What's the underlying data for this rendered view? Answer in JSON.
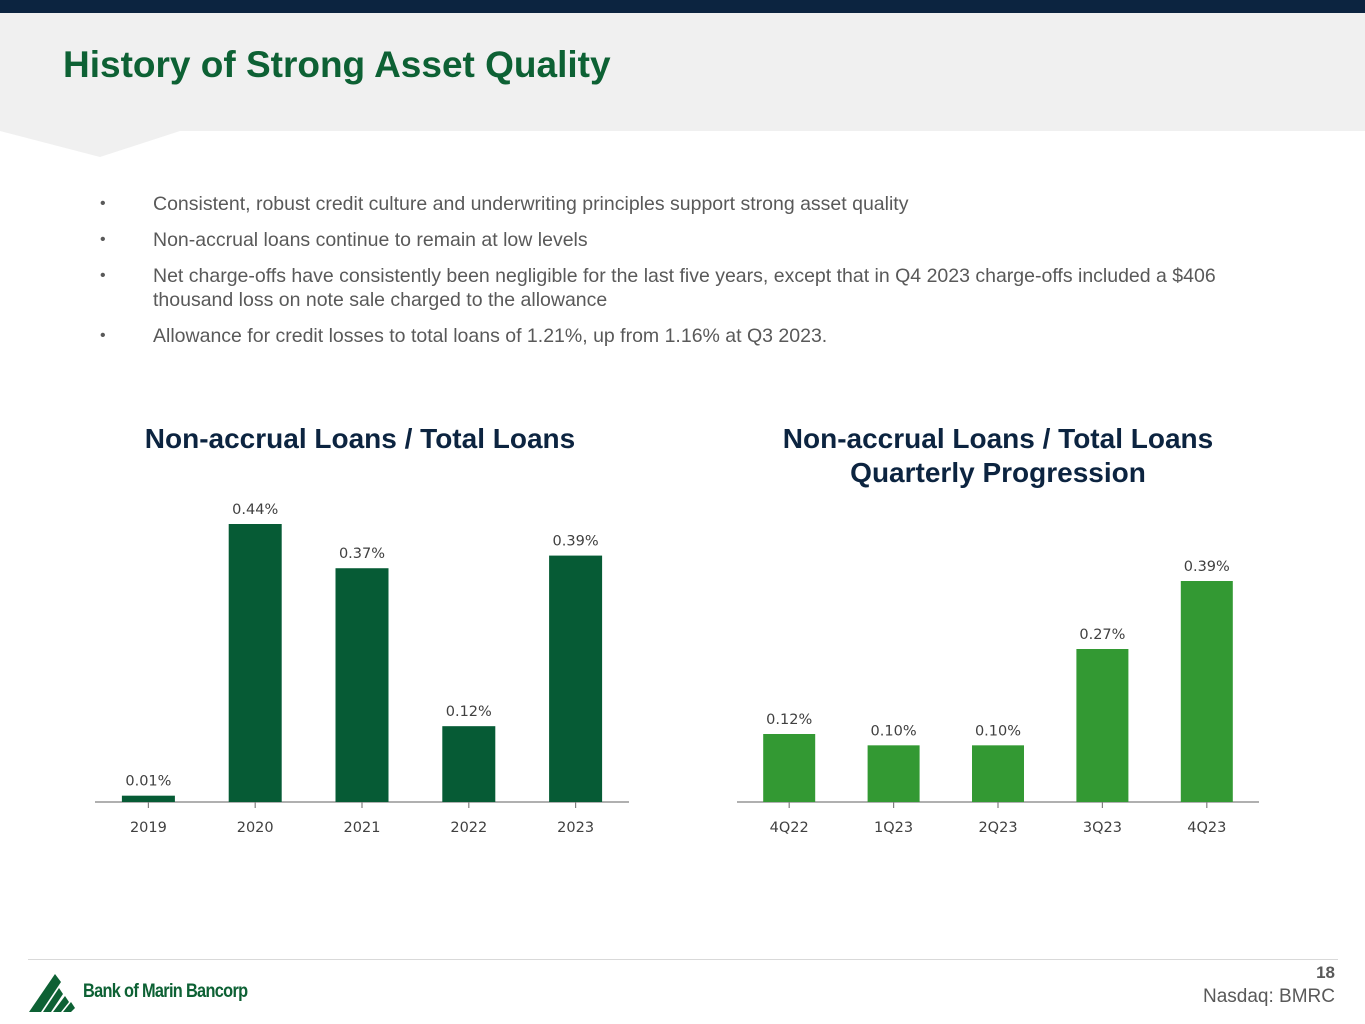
{
  "slide": {
    "title": "History of Strong Asset Quality",
    "page_number": "18",
    "ticker": "Nasdaq: BMRC",
    "logo_text": "Bank of Marin Bancorp"
  },
  "bullets": [
    "Consistent, robust credit culture and underwriting principles support strong asset quality",
    "Non-accrual loans continue to remain at low levels",
    "Net charge-offs have consistently been negligible for the last five years, except that in Q4 2023 charge-offs included a $406 thousand loss on note sale charged to the allowance",
    "Allowance for credit losses to total loans of 1.21%, up from 1.16% at Q3 2023."
  ],
  "bullet_symbol": "•",
  "colors": {
    "title_green": "#0d6134",
    "annual_bar": "#065b35",
    "quarterly_bar": "#339933",
    "navy": "#0c2440",
    "axis": "#808080"
  },
  "chart_data": [
    {
      "type": "bar",
      "title": "Non-accrual Loans / Total Loans",
      "categories": [
        "2019",
        "2020",
        "2021",
        "2022",
        "2023"
      ],
      "values": [
        0.01,
        0.44,
        0.37,
        0.12,
        0.39
      ],
      "labels": [
        "0.01%",
        "0.44%",
        "0.37%",
        "0.12%",
        "0.39%"
      ],
      "unit": "%",
      "color": "#065b35",
      "grid": false,
      "legend": "none"
    },
    {
      "type": "bar",
      "title": "Non-accrual Loans / Total Loans Quarterly Progression",
      "title_lines": [
        "Non-accrual Loans / Total Loans",
        "Quarterly Progression"
      ],
      "categories": [
        "4Q22",
        "1Q23",
        "2Q23",
        "3Q23",
        "4Q23"
      ],
      "values": [
        0.12,
        0.1,
        0.1,
        0.27,
        0.39
      ],
      "labels": [
        "0.12%",
        "0.10%",
        "0.10%",
        "0.27%",
        "0.39%"
      ],
      "unit": "%",
      "color": "#339933",
      "grid": false,
      "legend": "none"
    }
  ]
}
